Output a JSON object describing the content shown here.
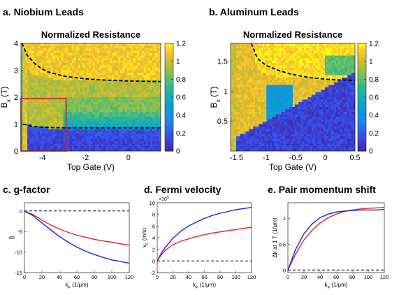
{
  "panel_labels": {
    "a": "a. Niobium Leads",
    "b": "b. Aluminum Leads",
    "c": "c. g-factor",
    "d": "d. Fermi velocity",
    "e": "e. Pair momentum shift"
  },
  "colors": {
    "red_curve": "#e8232a",
    "blue_curve": "#1f23d6",
    "dashed": "#000000",
    "map_low": "#3e26a8",
    "map_high": "#f9fb0e"
  },
  "chart_data": [
    {
      "id": "a",
      "type": "heatmap",
      "title": "Normalized Resistance",
      "xlabel": "Top Gate (V)",
      "ylabel": "B",
      "ylabel_sub": "x",
      "ylabel_unit": " (T)",
      "xlim": [
        -5.0,
        1.5
      ],
      "ylim": [
        0,
        4
      ],
      "xticks": [
        -4,
        -2,
        0
      ],
      "xticklabels": [
        "-4",
        "-2",
        "0"
      ],
      "yticks": [
        0,
        1,
        2,
        3,
        4
      ],
      "yticklabels": [
        "0",
        "1",
        "2",
        "3",
        "4"
      ],
      "colorbar": {
        "min": 0,
        "max": 1.2,
        "ticks": [
          0,
          0.2,
          0.4,
          0.6,
          0.8,
          1,
          1.2
        ],
        "ticklabels": [
          "0",
          "0.2",
          "0.4",
          "0.6",
          "0.8",
          "1",
          "1.2"
        ]
      },
      "dashed_curve": {
        "x": [
          -4.95,
          -4.7,
          -4.3,
          -3.8,
          -3.0,
          -2.0,
          -1.0,
          0.0,
          1.5
        ],
        "y": [
          4.0,
          3.55,
          3.2,
          2.95,
          2.78,
          2.68,
          2.63,
          2.6,
          2.58
        ]
      },
      "dashed_curve_low": {
        "x": [
          -4.9,
          -4.5,
          -4.0,
          -3.0,
          -2.0,
          -1.0,
          0.0,
          1.5
        ],
        "y": [
          1.0,
          0.92,
          0.88,
          0.86,
          0.86,
          0.86,
          0.86,
          0.86
        ]
      },
      "inset_box": {
        "x": [
          -5.0,
          -2.9
        ],
        "y": [
          0,
          1.95
        ]
      }
    },
    {
      "id": "b",
      "type": "heatmap",
      "title": "Normalized Resistance",
      "xlabel": "Top Gate (V)",
      "ylabel": "B",
      "ylabel_sub": "x",
      "ylabel_unit": " (T)",
      "xlim": [
        -1.6,
        0.5
      ],
      "ylim": [
        0,
        1.8
      ],
      "xticks": [
        -1.5,
        -1,
        -0.5,
        0,
        0.5
      ],
      "xticklabels": [
        "-1.5",
        "-1",
        "-0.5",
        "0",
        "0.5"
      ],
      "yticks": [
        0.5,
        1,
        1.5
      ],
      "yticklabels": [
        "0.5",
        "1",
        "1.5"
      ],
      "colorbar": {
        "min": 0,
        "max": 1.2,
        "ticks": [
          0,
          0.2,
          0.4,
          0.6,
          0.8,
          1,
          1.2
        ],
        "ticklabels": [
          "0",
          "0.2",
          "0.4",
          "0.6",
          "0.8",
          "1",
          "1.2"
        ]
      },
      "dashed_curve": {
        "x": [
          -1.25,
          -1.15,
          -1.0,
          -0.8,
          -0.6,
          -0.4,
          -0.2,
          0.0,
          0.2,
          0.5
        ],
        "y": [
          1.8,
          1.55,
          1.43,
          1.35,
          1.29,
          1.25,
          1.22,
          1.2,
          1.19,
          1.18
        ]
      }
    },
    {
      "id": "c",
      "type": "line",
      "xlabel": "k",
      "xlabel_sub": "F",
      "xlabel_unit": " (1/μm)",
      "ylabel": "g̃",
      "xlim": [
        0,
        120
      ],
      "ylim": [
        -15,
        2
      ],
      "xticks": [
        0,
        20,
        40,
        60,
        80,
        100,
        120
      ],
      "xticklabels": [
        "0",
        "20",
        "40",
        "60",
        "80",
        "100",
        "120"
      ],
      "yticks": [
        -15,
        -10,
        -5,
        0
      ],
      "yticklabels": [
        "-15",
        "-10",
        "-5",
        "0"
      ],
      "series": [
        {
          "color": "red",
          "x": [
            0,
            10,
            20,
            30,
            40,
            50,
            60,
            70,
            80,
            90,
            100,
            110,
            120
          ],
          "y": [
            0,
            -0.9,
            -2.2,
            -3.4,
            -4.4,
            -5.2,
            -5.9,
            -6.4,
            -6.9,
            -7.3,
            -7.6,
            -8.0,
            -8.3
          ]
        },
        {
          "color": "blue",
          "x": [
            0,
            10,
            20,
            30,
            40,
            50,
            60,
            70,
            80,
            90,
            100,
            110,
            120
          ],
          "y": [
            0,
            -1.2,
            -2.9,
            -4.6,
            -6.2,
            -7.6,
            -8.8,
            -9.8,
            -10.6,
            -11.3,
            -11.9,
            -12.3,
            -12.7
          ]
        },
        {
          "color": "dashed",
          "x": [
            0,
            120
          ],
          "y": [
            0,
            0
          ]
        }
      ]
    },
    {
      "id": "d",
      "type": "line",
      "xlabel": "k",
      "xlabel_sub": "F",
      "xlabel_unit": " (1/μm)",
      "ylabel": "v",
      "ylabel_sub": "F",
      "ylabel_unit": " (m/s)",
      "exponent_label": "×10",
      "exponent_power": "5",
      "xlim": [
        0,
        120
      ],
      "ylim": [
        -2,
        10
      ],
      "xticks": [
        0,
        20,
        40,
        60,
        80,
        100,
        120
      ],
      "xticklabels": [
        "0",
        "20",
        "40",
        "60",
        "80",
        "100",
        "120"
      ],
      "yticks": [
        -2,
        0,
        2,
        4,
        6,
        8,
        10
      ],
      "yticklabels": [
        "-2",
        "0",
        "2",
        "4",
        "6",
        "8",
        "10"
      ],
      "series": [
        {
          "color": "blue",
          "x": [
            0,
            5,
            10,
            20,
            30,
            40,
            50,
            60,
            70,
            80,
            90,
            100,
            110,
            120
          ],
          "y": [
            0,
            1.3,
            2.3,
            3.9,
            5.1,
            6.0,
            6.7,
            7.3,
            7.8,
            8.2,
            8.5,
            8.8,
            9.0,
            9.2
          ]
        },
        {
          "color": "red",
          "x": [
            0,
            5,
            10,
            20,
            30,
            40,
            50,
            60,
            70,
            80,
            90,
            100,
            110,
            120
          ],
          "y": [
            0,
            1.0,
            1.8,
            2.8,
            3.4,
            3.8,
            4.2,
            4.5,
            4.8,
            5.0,
            5.2,
            5.4,
            5.6,
            5.8
          ]
        },
        {
          "color": "dashed",
          "x": [
            0,
            120
          ],
          "y": [
            0,
            0
          ]
        }
      ]
    },
    {
      "id": "e",
      "type": "line",
      "xlabel": "k",
      "xlabel_sub": "F",
      "xlabel_unit": " (1/μm)",
      "ylabel": "Δk at 1 T (1/μm)",
      "xlim": [
        0,
        120
      ],
      "ylim": [
        -0.05,
        1.3
      ],
      "xticks": [
        0,
        20,
        40,
        60,
        80,
        100,
        120
      ],
      "xticklabels": [
        "0",
        "20",
        "40",
        "60",
        "80",
        "100",
        "120"
      ],
      "yticks": [
        0,
        0.5,
        1
      ],
      "yticklabels": [
        "0",
        "0.5",
        "1"
      ],
      "series": [
        {
          "color": "red",
          "x": [
            0,
            10,
            20,
            30,
            40,
            50,
            60,
            70,
            80,
            90,
            100,
            110,
            120
          ],
          "y": [
            0,
            0.32,
            0.58,
            0.77,
            0.91,
            1.01,
            1.08,
            1.13,
            1.16,
            1.18,
            1.19,
            1.2,
            1.21
          ]
        },
        {
          "color": "blue",
          "x": [
            0,
            10,
            20,
            30,
            40,
            50,
            60,
            70,
            80,
            90,
            100,
            110,
            120
          ],
          "y": [
            0,
            0.41,
            0.7,
            0.89,
            1.01,
            1.08,
            1.12,
            1.14,
            1.15,
            1.16,
            1.16,
            1.16,
            1.17
          ]
        },
        {
          "color": "dashed",
          "x": [
            0,
            120
          ],
          "y": [
            0,
            0
          ]
        }
      ]
    }
  ]
}
